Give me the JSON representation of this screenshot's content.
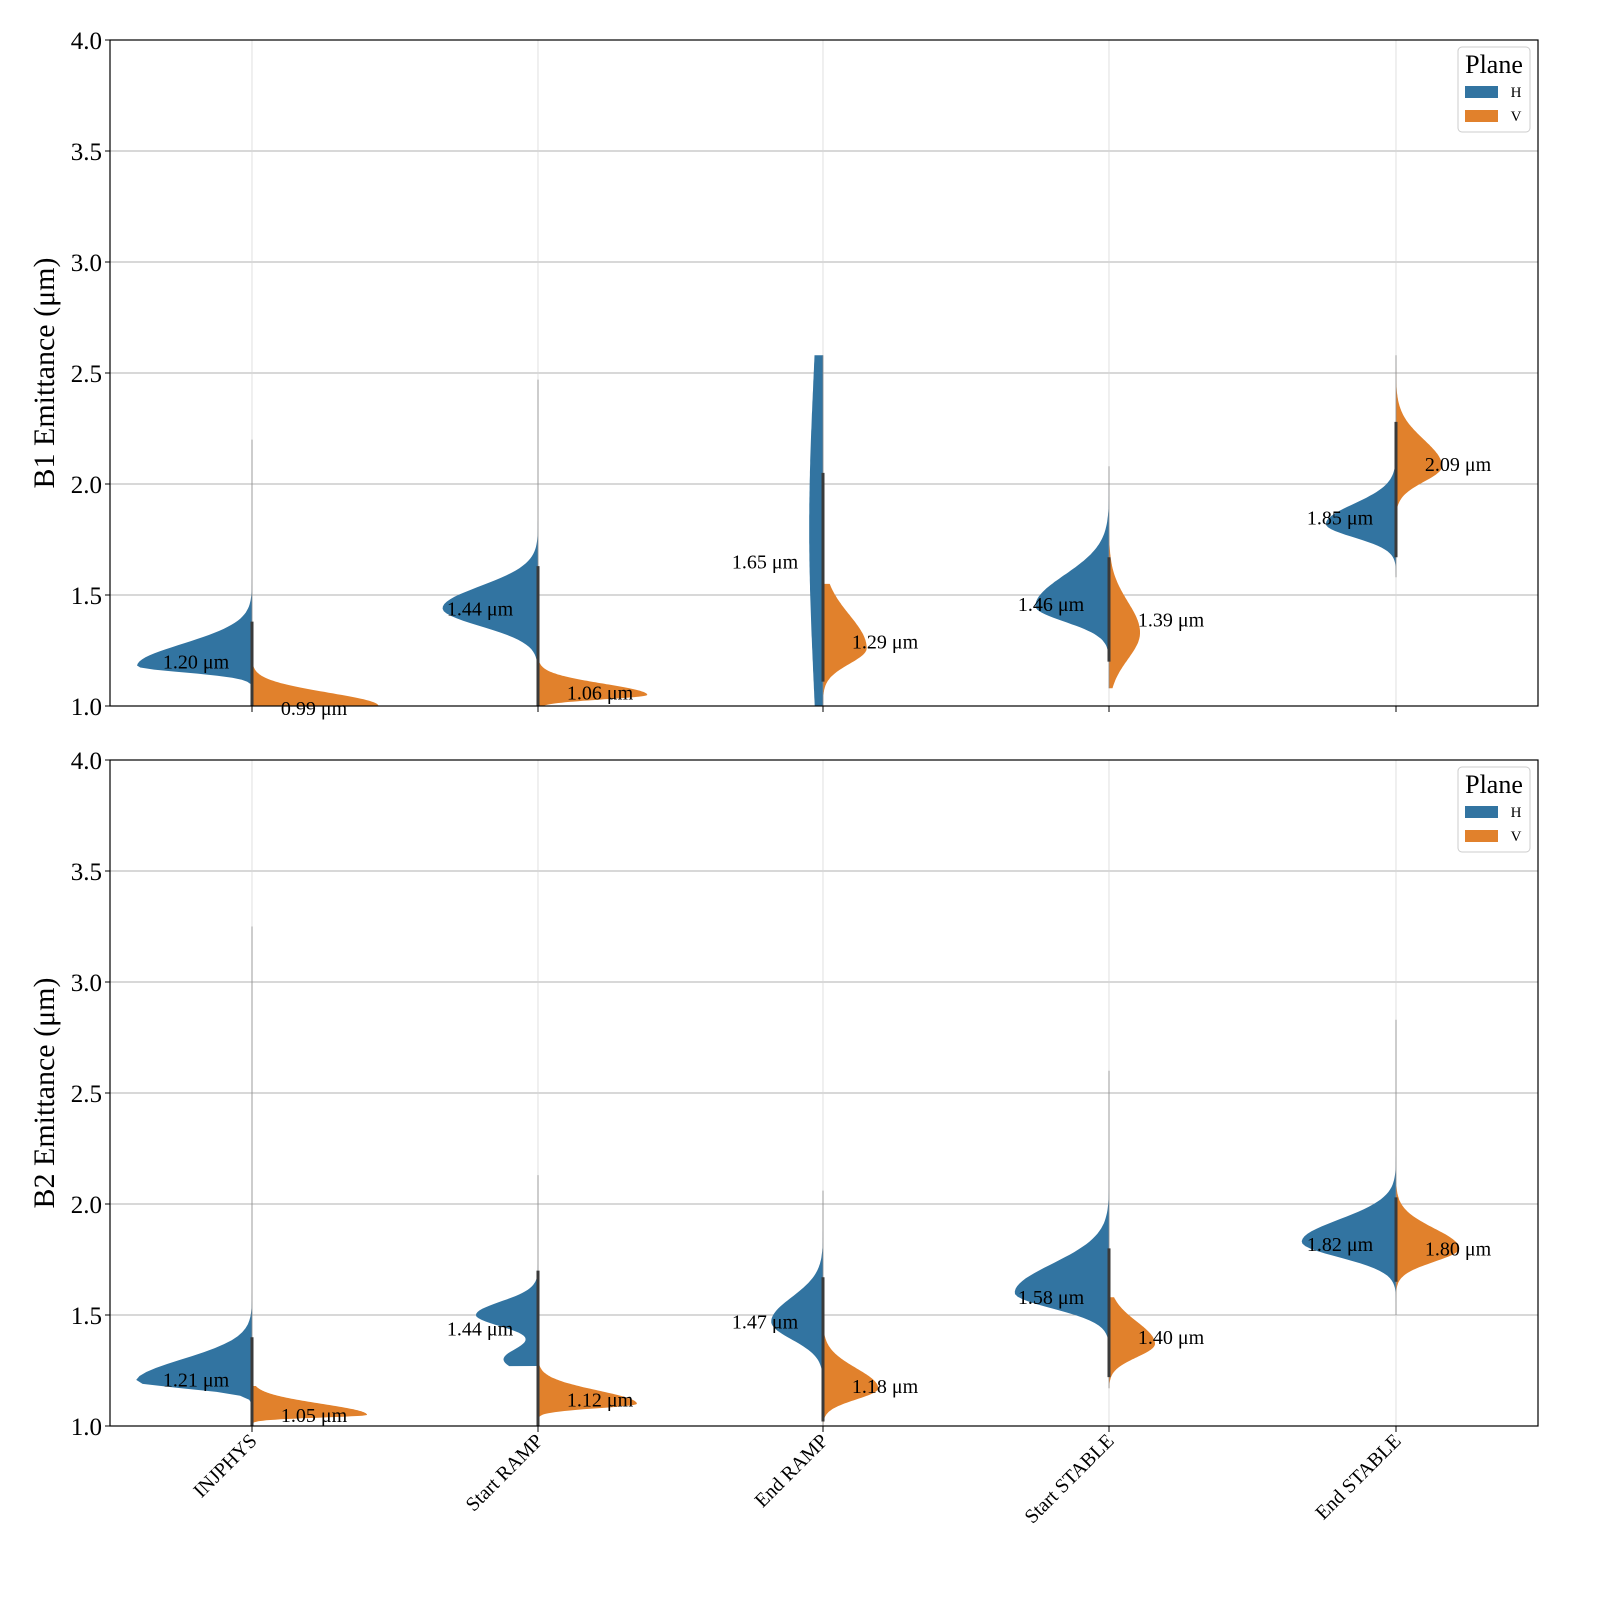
{
  "colors": {
    "H": "#3274a1",
    "V": "#e1812c",
    "grid": "#b0b0b0",
    "inner": "#3a3a3a"
  },
  "legend": {
    "title": "Plane",
    "items": [
      "H",
      "V"
    ]
  },
  "chart_data": [
    {
      "type": "violin",
      "ylabel": "B1 Emittance (μm)",
      "ylabel_text": "B1 Emittance (",
      "ylabel_unit": "μm",
      "ylabel_close": ")",
      "ylim": [
        1.0,
        4.0
      ],
      "yticks": [
        "1.0",
        "1.5",
        "2.0",
        "2.5",
        "3.0",
        "3.5",
        "4.0"
      ],
      "grid": true,
      "legend_position": "top-right",
      "categories": [
        "INJPHYS",
        "Start RAMP",
        "End RAMP",
        "Start STABLE",
        "End STABLE"
      ],
      "series": [
        {
          "name": "H",
          "labels": [
            "1.20 μm",
            "1.44 μm",
            "1.65 μm",
            "1.46 μm",
            "1.85 μm"
          ],
          "median": [
            1.2,
            1.44,
            1.65,
            1.46,
            1.85
          ],
          "peak": [
            1.18,
            1.43,
            1.85,
            1.47,
            1.82
          ],
          "range": [
            [
              1.1,
              2.2
            ],
            [
              1.18,
              2.47
            ],
            [
              1.0,
              2.58
            ],
            [
              1.2,
              2.08
            ],
            [
              1.58,
              2.58
            ]
          ],
          "shape": [
            [
              1.18,
              0.028,
              0.1,
              1.0
            ],
            [
              1.44,
              0.08,
              0.1,
              0.83
            ],
            [
              1.8,
              0.5,
              0.5,
              0.1
            ],
            [
              1.45,
              0.07,
              0.14,
              0.64
            ],
            [
              1.82,
              0.06,
              0.09,
              0.61
            ]
          ]
        },
        {
          "name": "V",
          "labels": [
            "0.99 μm",
            "1.06 μm",
            "1.29 μm",
            "1.39 μm",
            "2.09 μm"
          ],
          "median": [
            0.99,
            1.06,
            1.29,
            1.39,
            2.09
          ],
          "peak": [
            1.0,
            1.05,
            1.26,
            1.35,
            2.08
          ],
          "range": [
            [
              1.0,
              1.4
            ],
            [
              1.0,
              1.2
            ],
            [
              1.05,
              1.55
            ],
            [
              1.08,
              1.8
            ],
            [
              1.85,
              2.55
            ]
          ],
          "shape": [
            [
              1.0,
              0.0,
              0.06,
              1.1
            ],
            [
              1.05,
              0.02,
              0.05,
              0.95
            ],
            [
              1.26,
              0.07,
              0.15,
              0.38
            ],
            [
              1.33,
              0.12,
              0.14,
              0.27
            ],
            [
              2.08,
              0.07,
              0.12,
              0.4
            ]
          ]
        }
      ]
    },
    {
      "type": "violin",
      "ylabel": "B2 Emittance (μm)",
      "ylabel_text": "B2 Emittance (",
      "ylabel_unit": "μm",
      "ylabel_close": ")",
      "ylim": [
        1.0,
        4.0
      ],
      "yticks": [
        "1.0",
        "1.5",
        "2.0",
        "2.5",
        "3.0",
        "3.5",
        "4.0"
      ],
      "grid": true,
      "legend_position": "top-right",
      "categories": [
        "INJPHYS",
        "Start RAMP",
        "End RAMP",
        "Start STABLE",
        "End STABLE"
      ],
      "xtick_rotation": 45,
      "series": [
        {
          "name": "H",
          "labels": [
            "1.21 μm",
            "1.44 μm",
            "1.47 μm",
            "1.58 μm",
            "1.82 μm"
          ],
          "median": [
            1.21,
            1.44,
            1.47,
            1.58,
            1.82
          ],
          "peak": [
            1.2,
            1.5,
            1.47,
            1.6,
            1.83
          ],
          "range": [
            [
              1.1,
              3.25
            ],
            [
              1.27,
              2.13
            ],
            [
              1.2,
              2.06
            ],
            [
              1.18,
              2.6
            ],
            [
              1.5,
              2.83
            ]
          ],
          "shape": [
            [
              1.2,
              0.03,
              0.1,
              1.01
            ],
            [
              1.5,
              0.05,
              0.06,
              0.54
            ],
            [
              1.47,
              0.08,
              0.11,
              0.45
            ],
            [
              1.6,
              0.07,
              0.13,
              0.82
            ],
            [
              1.83,
              0.07,
              0.1,
              0.82
            ]
          ]
        },
        {
          "name": "V",
          "labels": [
            "1.05 μm",
            "1.12 μm",
            "1.18 μm",
            "1.40 μm",
            "1.80 μm"
          ],
          "median": [
            1.05,
            1.12,
            1.18,
            1.4,
            1.8
          ],
          "peak": [
            1.05,
            1.1,
            1.17,
            1.37,
            1.8
          ],
          "range": [
            [
              1.0,
              1.18
            ],
            [
              1.0,
              1.3
            ],
            [
              1.0,
              1.45
            ],
            [
              1.17,
              1.58
            ],
            [
              1.56,
              2.08
            ]
          ],
          "shape": [
            [
              1.05,
              0.012,
              0.05,
              1.0
            ],
            [
              1.1,
              0.02,
              0.06,
              0.86
            ],
            [
              1.17,
              0.05,
              0.09,
              0.48
            ],
            [
              1.37,
              0.06,
              0.1,
              0.4
            ],
            [
              1.8,
              0.06,
              0.09,
              0.55
            ]
          ]
        }
      ]
    }
  ]
}
